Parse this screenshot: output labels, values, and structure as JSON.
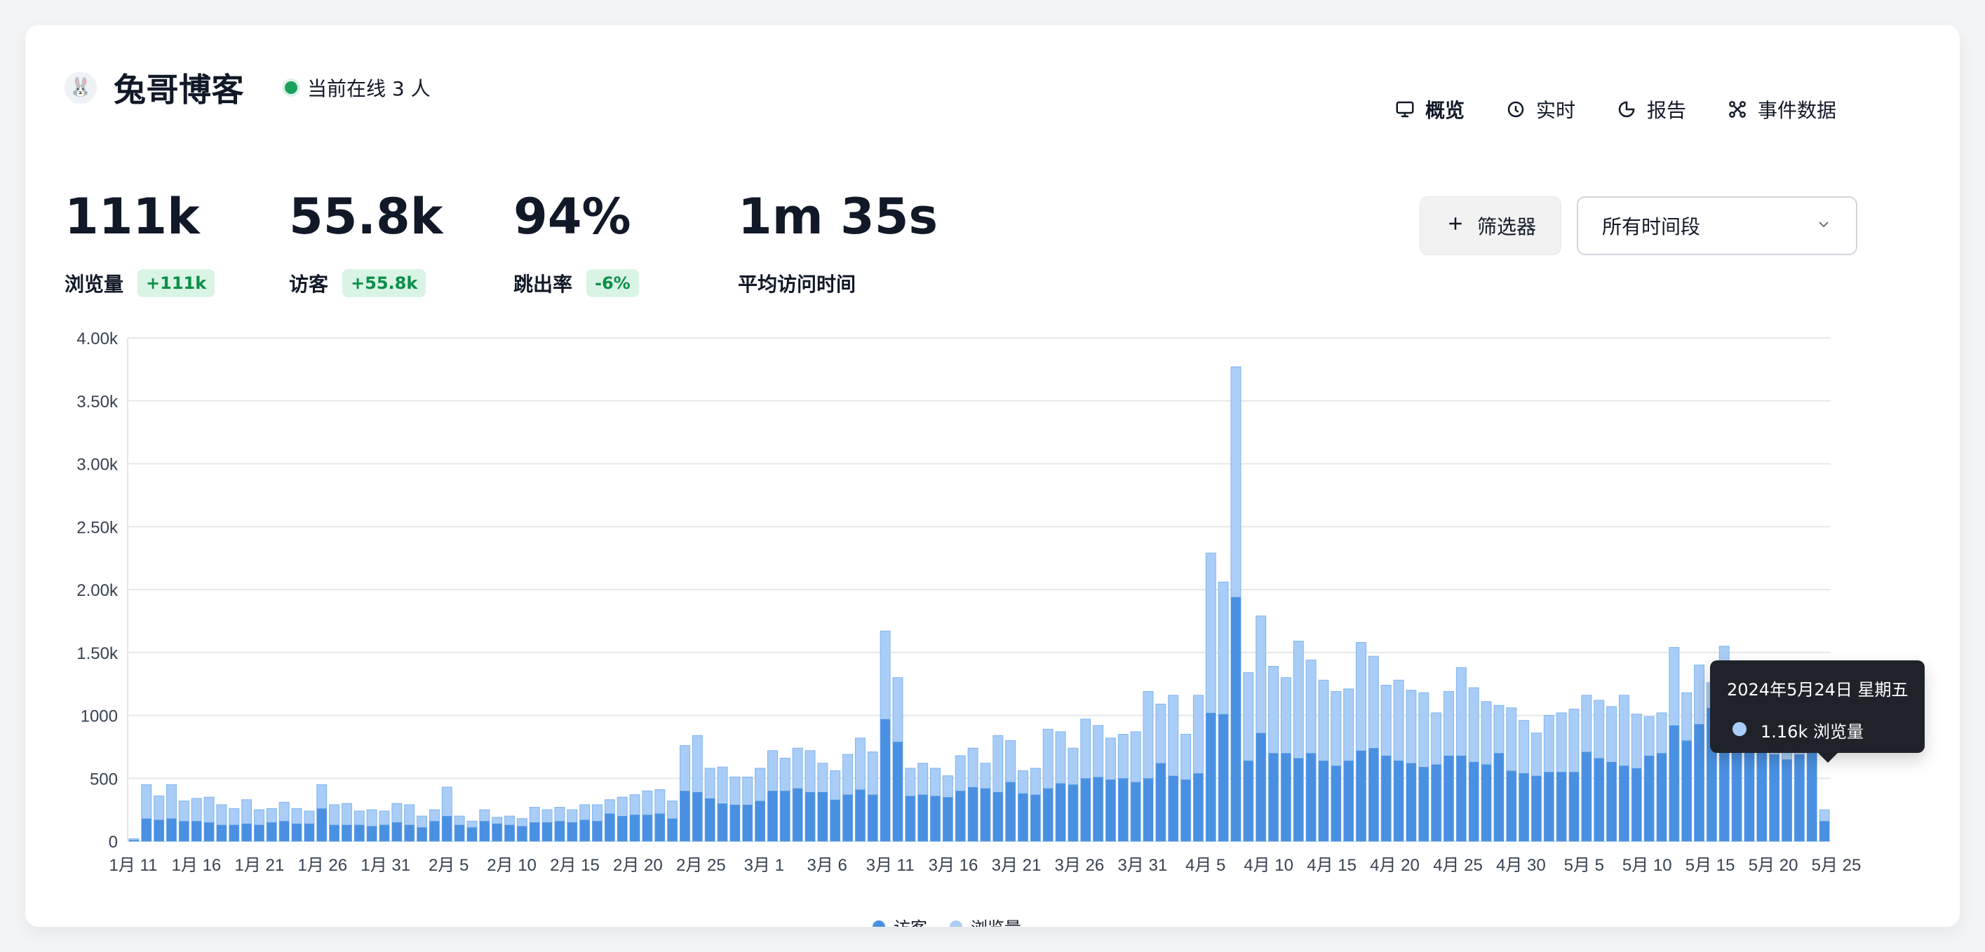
{
  "header": {
    "site_title": "兔哥博客",
    "online_text": "当前在线 3 人",
    "brand_icon": "rabbit-icon",
    "nav": [
      {
        "label": "概览",
        "icon": "monitor-icon",
        "active": true
      },
      {
        "label": "实时",
        "icon": "clock-icon",
        "active": false
      },
      {
        "label": "报告",
        "icon": "pie-chart-icon",
        "active": false
      },
      {
        "label": "事件数据",
        "icon": "events-icon",
        "active": false
      }
    ]
  },
  "stats": [
    {
      "value": "111k",
      "label": "浏览量",
      "badge": "+111k",
      "badge_color": "#0a8f47"
    },
    {
      "value": "55.8k",
      "label": "访客",
      "badge": "+55.8k",
      "badge_color": "#0a8f47"
    },
    {
      "value": "94%",
      "label": "跳出率",
      "badge": "-6%",
      "badge_color": "#0a8f47"
    },
    {
      "value": "1m 35s",
      "label": "平均访问时间",
      "badge": "",
      "badge_color": ""
    }
  ],
  "toolbar": {
    "filter_label": "筛选器",
    "time_range_value": "所有时间段"
  },
  "chart_data": {
    "type": "bar",
    "y_ticks": [
      "0",
      "500",
      "1000",
      "1.50k",
      "2.00k",
      "2.50k",
      "3.00k",
      "3.50k",
      "4.00k"
    ],
    "ylim": [
      0,
      4000
    ],
    "x_tick_labels": [
      "1月 11",
      "1月 16",
      "1月 21",
      "1月 26",
      "1月 31",
      "2月 5",
      "2月 10",
      "2月 15",
      "2月 20",
      "2月 25",
      "3月 1",
      "3月 6",
      "3月 11",
      "3月 16",
      "3月 21",
      "3月 26",
      "3月 31",
      "4月 5",
      "4月 10",
      "4月 15",
      "4月 20",
      "4月 25",
      "4月 30",
      "5月 5",
      "5月 10",
      "5月 15",
      "5月 20",
      "5月 25"
    ],
    "series": [
      {
        "name": "访客",
        "color": "#4a90e2",
        "values": [
          10,
          180,
          170,
          180,
          160,
          160,
          150,
          130,
          130,
          140,
          130,
          150,
          160,
          140,
          140,
          260,
          130,
          130,
          130,
          120,
          130,
          150,
          130,
          110,
          160,
          200,
          130,
          110,
          160,
          140,
          130,
          120,
          150,
          150,
          160,
          150,
          170,
          160,
          220,
          200,
          210,
          210,
          220,
          180,
          400,
          390,
          340,
          300,
          290,
          290,
          320,
          400,
          400,
          420,
          390,
          390,
          330,
          370,
          410,
          370,
          970,
          790,
          360,
          370,
          360,
          350,
          400,
          430,
          420,
          390,
          470,
          380,
          370,
          420,
          460,
          450,
          500,
          510,
          490,
          500,
          470,
          500,
          620,
          520,
          490,
          540,
          1020,
          1010,
          1940,
          640,
          860,
          700,
          700,
          660,
          700,
          640,
          600,
          640,
          720,
          740,
          680,
          640,
          620,
          590,
          610,
          680,
          680,
          630,
          610,
          700,
          560,
          540,
          520,
          550,
          550,
          550,
          710,
          660,
          630,
          600,
          580,
          680,
          700,
          920,
          800,
          930,
          1060,
          1000,
          1090,
          1060,
          920,
          690,
          650,
          690,
          1160,
          160
        ],
        "legend_dot": "blue"
      },
      {
        "name": "浏览量",
        "color": "#a9cdf6",
        "values": [
          20,
          450,
          360,
          450,
          320,
          340,
          350,
          290,
          260,
          330,
          250,
          260,
          310,
          260,
          240,
          450,
          290,
          300,
          240,
          250,
          240,
          300,
          290,
          200,
          250,
          430,
          200,
          160,
          250,
          190,
          200,
          180,
          270,
          250,
          270,
          250,
          290,
          290,
          330,
          350,
          370,
          400,
          410,
          320,
          760,
          840,
          580,
          590,
          510,
          510,
          580,
          720,
          660,
          740,
          720,
          620,
          560,
          690,
          820,
          710,
          1670,
          1300,
          580,
          620,
          580,
          520,
          680,
          740,
          620,
          840,
          800,
          560,
          580,
          890,
          870,
          740,
          970,
          920,
          820,
          850,
          870,
          1190,
          1090,
          1160,
          850,
          1160,
          2290,
          2060,
          3770,
          1340,
          1790,
          1390,
          1300,
          1590,
          1440,
          1280,
          1190,
          1210,
          1580,
          1470,
          1240,
          1280,
          1200,
          1180,
          1020,
          1190,
          1380,
          1220,
          1110,
          1080,
          1060,
          960,
          860,
          1000,
          1020,
          1050,
          1160,
          1120,
          1070,
          1160,
          1010,
          990,
          1020,
          1540,
          1180,
          1400,
          1260,
          1550,
          1400,
          1210,
          1180,
          1090,
          1050,
          1130,
          1160,
          250
        ],
        "legend_dot": "light"
      }
    ],
    "tooltip": {
      "title": "2024年5月24日 星期五",
      "row": "1.16k 浏览量"
    },
    "legend": [
      "访客",
      "浏览量"
    ]
  }
}
